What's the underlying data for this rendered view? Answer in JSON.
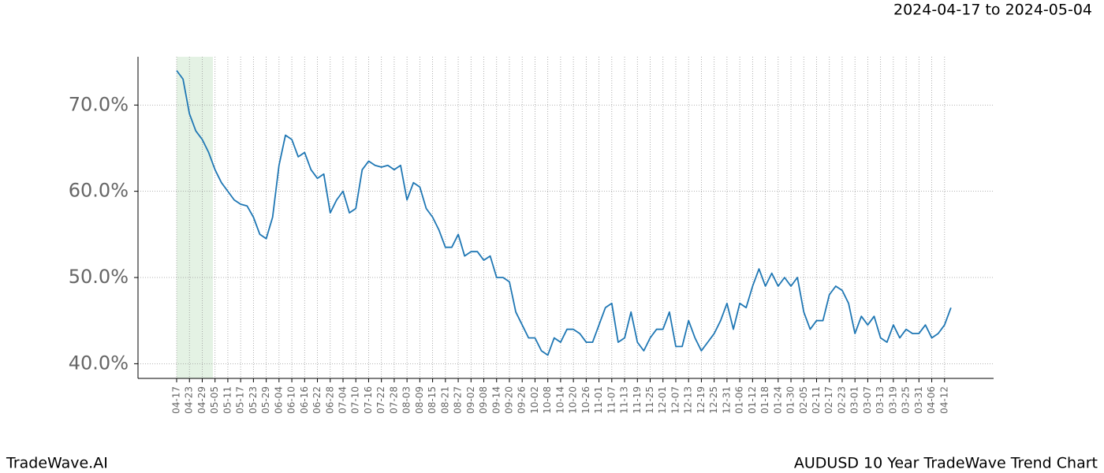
{
  "chart_data": {
    "type": "line",
    "title": "AUDUSD 10 Year TradeWave Trend Chart",
    "subtitle": "2024-04-17 to 2024-05-04",
    "brand": "TradeWave.AI",
    "color": "#1f77b4",
    "highlight": [
      "04-17",
      "05-04"
    ],
    "highlight_color": "#d9ecd9",
    "grid": true,
    "ylim": [
      38.3,
      75.6
    ],
    "yticks": [
      {
        "value": 40,
        "label": "40.0%"
      },
      {
        "value": 50,
        "label": "50.0%"
      },
      {
        "value": 60,
        "label": "60.0%"
      },
      {
        "value": 70,
        "label": "70.0%"
      }
    ],
    "xticks": [
      "04-17",
      "04-23",
      "04-29",
      "05-05",
      "05-11",
      "05-17",
      "05-23",
      "05-29",
      "06-04",
      "06-10",
      "06-16",
      "06-22",
      "06-28",
      "07-04",
      "07-10",
      "07-16",
      "07-22",
      "07-28",
      "08-03",
      "08-09",
      "08-15",
      "08-21",
      "08-27",
      "09-02",
      "09-08",
      "09-14",
      "09-20",
      "09-26",
      "10-02",
      "10-08",
      "10-14",
      "10-20",
      "10-26",
      "11-01",
      "11-07",
      "11-13",
      "11-19",
      "11-25",
      "12-01",
      "12-07",
      "12-13",
      "12-19",
      "12-25",
      "12-31",
      "01-06",
      "01-12",
      "01-18",
      "01-24",
      "01-30",
      "02-05",
      "02-11",
      "02-17",
      "02-23",
      "03-01",
      "03-07",
      "03-13",
      "03-19",
      "03-25",
      "03-31",
      "04-06",
      "04-12"
    ],
    "x": [
      "04-17",
      "04-20",
      "04-23",
      "04-26",
      "04-29",
      "05-02",
      "05-05",
      "05-08",
      "05-11",
      "05-14",
      "05-17",
      "05-20",
      "05-23",
      "05-26",
      "05-29",
      "06-01",
      "06-04",
      "06-07",
      "06-10",
      "06-13",
      "06-16",
      "06-19",
      "06-22",
      "06-25",
      "06-28",
      "07-01",
      "07-04",
      "07-07",
      "07-10",
      "07-13",
      "07-16",
      "07-19",
      "07-22",
      "07-25",
      "07-28",
      "07-31",
      "08-03",
      "08-06",
      "08-09",
      "08-12",
      "08-15",
      "08-18",
      "08-21",
      "08-24",
      "08-27",
      "08-30",
      "09-02",
      "09-05",
      "09-08",
      "09-11",
      "09-14",
      "09-17",
      "09-20",
      "09-23",
      "09-26",
      "09-29",
      "10-02",
      "10-05",
      "10-08",
      "10-11",
      "10-14",
      "10-17",
      "10-20",
      "10-23",
      "10-26",
      "10-29",
      "11-01",
      "11-04",
      "11-07",
      "11-10",
      "11-13",
      "11-16",
      "11-19",
      "11-22",
      "11-25",
      "11-28",
      "12-01",
      "12-04",
      "12-07",
      "12-10",
      "12-13",
      "12-16",
      "12-19",
      "12-22",
      "12-25",
      "12-28",
      "12-31",
      "01-03",
      "01-06",
      "01-09",
      "01-12",
      "01-15",
      "01-18",
      "01-21",
      "01-24",
      "01-27",
      "01-30",
      "02-02",
      "02-05",
      "02-08",
      "02-11",
      "02-14",
      "02-17",
      "02-20",
      "02-23",
      "02-26",
      "03-01",
      "03-04",
      "03-07",
      "03-10",
      "03-13",
      "03-16",
      "03-19",
      "03-22",
      "03-25",
      "03-28",
      "03-31",
      "04-03",
      "04-06",
      "04-09",
      "04-12",
      "04-15"
    ],
    "values": [
      74.0,
      73.0,
      69.0,
      67.0,
      66.0,
      64.5,
      62.5,
      61.0,
      60.0,
      59.0,
      58.5,
      58.3,
      57.0,
      55.0,
      54.5,
      57.0,
      63.0,
      66.5,
      66.0,
      64.0,
      64.5,
      62.5,
      61.5,
      62.0,
      57.5,
      59.0,
      60.0,
      57.5,
      58.0,
      62.5,
      63.5,
      63.0,
      62.8,
      63.0,
      62.5,
      63.0,
      59.0,
      61.0,
      60.5,
      58.0,
      57.0,
      55.5,
      53.5,
      53.5,
      55.0,
      52.5,
      53.0,
      53.0,
      52.0,
      52.5,
      50.0,
      50.0,
      49.5,
      46.0,
      44.5,
      43.0,
      43.0,
      41.5,
      41.0,
      43.0,
      42.5,
      44.0,
      44.0,
      43.5,
      42.5,
      42.5,
      44.5,
      46.5,
      47.0,
      42.5,
      43.0,
      46.0,
      42.5,
      41.5,
      43.0,
      44.0,
      44.0,
      46.0,
      42.0,
      42.0,
      45.0,
      43.0,
      41.5,
      42.5,
      43.5,
      45.0,
      47.0,
      44.0,
      47.0,
      46.5,
      49.0,
      51.0,
      49.0,
      50.5,
      49.0,
      50.0,
      49.0,
      50.0,
      46.0,
      44.0,
      45.0,
      45.0,
      48.0,
      49.0,
      48.5,
      47.0,
      43.5,
      45.5,
      44.5,
      45.5,
      43.0,
      42.5,
      44.5,
      43.0,
      44.0,
      43.5,
      43.5,
      44.5,
      43.0,
      43.5,
      44.5,
      46.5
    ]
  }
}
